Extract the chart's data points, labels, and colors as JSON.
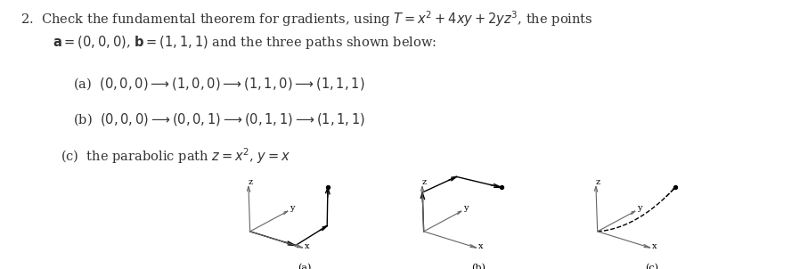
{
  "bg_color": "#ffffff",
  "text_color": "#333333",
  "axis_color": "#666666",
  "fontsize_main": 10.5,
  "fontsize_label": 8,
  "fontsize_axis": 7,
  "line1_num": "2.",
  "line1_rest": "Check the fundamental theorem for gradients, using $T = x^2 + 4xy + 2yz^3$, the points",
  "line2": "$\\mathbf{a} = (0,0,0)$, $\\mathbf{b} = (1,1,1)$ and the three paths shown below:",
  "item_a": "(a)  $(0,0,0) \\rightarrow (1,0,0) \\rightarrow (1,1,0) \\rightarrow (1,1,1)$",
  "item_b": "(b)  $(0,0,0) \\rightarrow (0,0,1) \\rightarrow (0,1,1) \\rightarrow (1,1,1)$",
  "item_c": "(c)  the parabolic path $z = x^2$, $y = x$",
  "label_a": "(a)",
  "label_b": "(b)",
  "label_c": "(c)"
}
